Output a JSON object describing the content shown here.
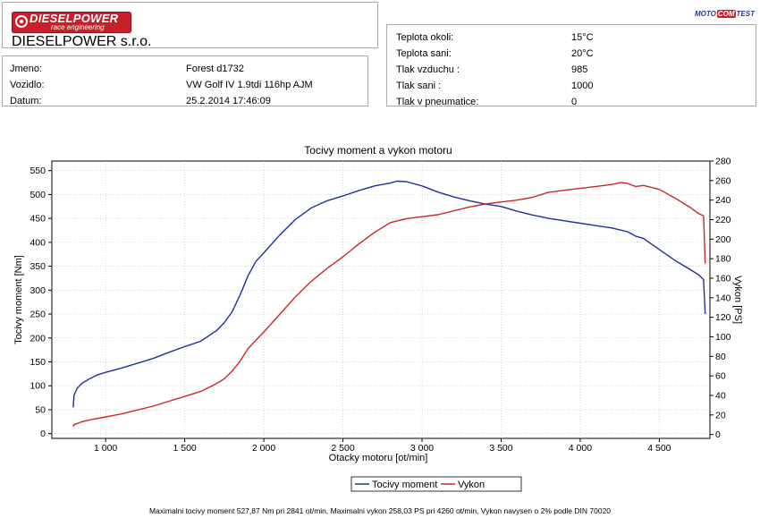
{
  "header": {
    "logo_brand": "DIESELPOWER",
    "logo_tagline": "race engineering",
    "company": "DIESELPOWER s.r.o.",
    "partner_logo": {
      "part1": "MOTO",
      "part2": "COM",
      "part3": "TEST"
    },
    "colors": {
      "brand_red": "#c8202a",
      "partner_blue": "#1f3f9a"
    }
  },
  "vehicle_info": [
    {
      "label": "Jmeno:",
      "value": "Forest d1732"
    },
    {
      "label": "Vozidlo:",
      "value": "VW Golf IV 1.9tdi 116hp AJM"
    },
    {
      "label": "Datum:",
      "value": "25.2.2014 17:46:09"
    }
  ],
  "conditions": [
    {
      "label": "Teplota okoli:",
      "value": "15°C"
    },
    {
      "label": "Teplota sani:",
      "value": "20°C"
    },
    {
      "label": "Tlak vzduchu :",
      "value": "985"
    },
    {
      "label": "Tlak sani :",
      "value": "1000"
    },
    {
      "label": "Tlak v pneumatice:",
      "value": "0"
    }
  ],
  "chart_data": {
    "type": "line",
    "title": "Tocivy moment a vykon motoru",
    "xlabel": "Otacky motoru [ot/min]",
    "ylabel_left": "Tocivy moment [Nm]",
    "ylabel_right": "Vykon [PS]",
    "xlim": [
      660,
      4820
    ],
    "ylim_left": [
      -10,
      570
    ],
    "ylim_right": [
      -4,
      280
    ],
    "x_ticks": [
      1000,
      1500,
      2000,
      2500,
      3000,
      3500,
      4000,
      4500
    ],
    "x_tick_labels": [
      "1 000",
      "1 500",
      "2 000",
      "2 500",
      "3 000",
      "3 500",
      "4 000",
      "4 500"
    ],
    "y_left_ticks": [
      0,
      50,
      100,
      150,
      200,
      250,
      300,
      350,
      400,
      450,
      500,
      550
    ],
    "y_right_ticks": [
      0,
      20,
      40,
      60,
      80,
      100,
      120,
      140,
      160,
      180,
      200,
      220,
      240,
      260,
      280
    ],
    "grid": true,
    "legend_position": "bottom-center",
    "series": [
      {
        "name": "Tocivy moment",
        "axis": "left",
        "color": "#1f2f9f",
        "x": [
          795,
          800,
          820,
          850,
          900,
          950,
          1000,
          1100,
          1200,
          1300,
          1400,
          1500,
          1600,
          1700,
          1750,
          1800,
          1850,
          1900,
          1950,
          2000,
          2100,
          2200,
          2300,
          2400,
          2500,
          2600,
          2700,
          2800,
          2841,
          2900,
          3000,
          3100,
          3200,
          3300,
          3400,
          3500,
          3600,
          3700,
          3800,
          3900,
          4000,
          4100,
          4200,
          4300,
          4350,
          4400,
          4500,
          4600,
          4700,
          4750,
          4780,
          4790
        ],
        "y": [
          55,
          80,
          95,
          105,
          115,
          123,
          128,
          137,
          147,
          157,
          170,
          182,
          193,
          215,
          232,
          255,
          290,
          330,
          360,
          378,
          415,
          448,
          472,
          487,
          497,
          508,
          518,
          524,
          527.87,
          527,
          518,
          505,
          495,
          487,
          480,
          475,
          465,
          457,
          450,
          445,
          440,
          435,
          430,
          422,
          413,
          408,
          385,
          362,
          342,
          332,
          322,
          250
        ]
      },
      {
        "name": "Vykon",
        "axis": "right",
        "color": "#c8282a",
        "x": [
          795,
          800,
          850,
          900,
          1000,
          1100,
          1200,
          1300,
          1400,
          1500,
          1600,
          1700,
          1750,
          1800,
          1850,
          1900,
          2000,
          2100,
          2200,
          2300,
          2400,
          2500,
          2600,
          2700,
          2800,
          2900,
          3000,
          3100,
          3200,
          3300,
          3400,
          3500,
          3600,
          3700,
          3800,
          3900,
          4000,
          4100,
          4200,
          4260,
          4300,
          4350,
          4400,
          4500,
          4600,
          4700,
          4750,
          4780,
          4790
        ],
        "y": [
          8,
          10,
          13,
          15,
          18,
          21,
          25,
          29,
          34,
          39,
          44,
          52,
          57,
          65,
          75,
          88,
          105,
          123,
          141,
          157,
          170,
          182,
          195,
          207,
          217,
          221,
          223,
          225,
          229,
          233,
          236,
          238,
          240,
          243,
          248,
          250,
          252,
          254,
          256,
          258.03,
          257,
          254,
          255,
          251,
          242,
          232,
          226,
          224,
          175
        ]
      }
    ],
    "footer_text": "Maximalni tocivy moment 527,87 Nm pri 2841 ot/min,  Maximalni vykon 258,03 PS pri 4260 ot/min,  Vykon navysen o 2% podle DIN 70020"
  }
}
